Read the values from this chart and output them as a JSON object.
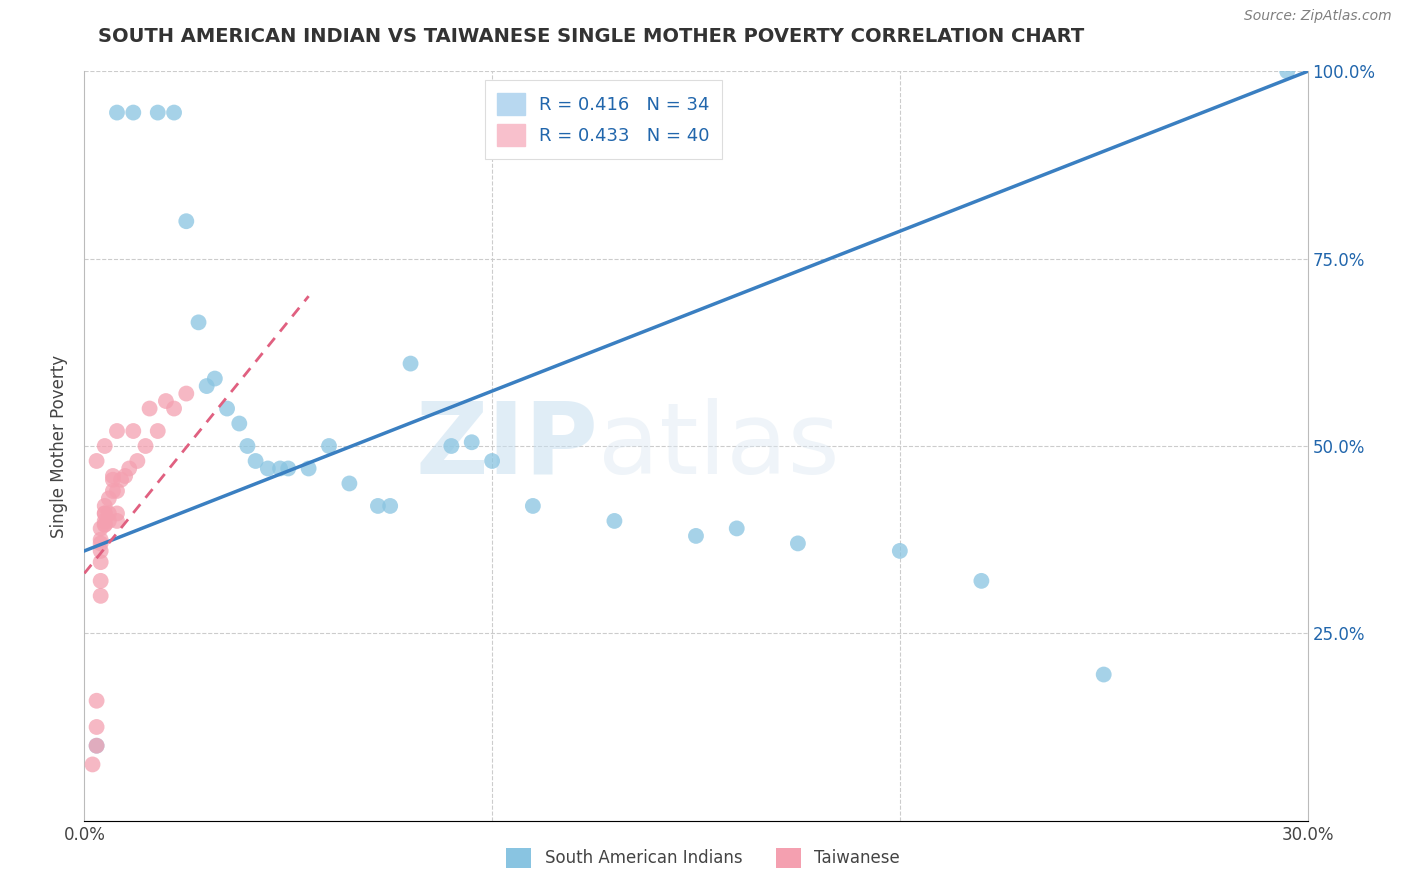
{
  "title": "SOUTH AMERICAN INDIAN VS TAIWANESE SINGLE MOTHER POVERTY CORRELATION CHART",
  "source": "Source: ZipAtlas.com",
  "ylabel": "Single Mother Poverty",
  "xlim": [
    0,
    0.3
  ],
  "ylim": [
    0,
    1.0
  ],
  "x_ticks": [
    0.0,
    0.1,
    0.2,
    0.3
  ],
  "x_tick_labels": [
    "0.0%",
    "",
    "",
    "30.0%"
  ],
  "y_ticks": [
    0.0,
    0.25,
    0.5,
    0.75,
    1.0
  ],
  "y_tick_labels": [
    "",
    "25.0%",
    "50.0%",
    "75.0%",
    "100.0%"
  ],
  "legend_blue_label": "R = 0.416   N = 34",
  "legend_pink_label": "R = 0.433   N = 40",
  "legend1_bottom": "South American Indians",
  "legend2_bottom": "Taiwanese",
  "blue_color": "#89c4e1",
  "pink_color": "#f4a0b0",
  "blue_line_color": "#3a7fc1",
  "pink_line_color": "#e06080",
  "watermark_zip": "ZIP",
  "watermark_atlas": "atlas",
  "blue_scatter_x": [
    0.003,
    0.008,
    0.012,
    0.018,
    0.022,
    0.025,
    0.028,
    0.03,
    0.032,
    0.035,
    0.038,
    0.04,
    0.042,
    0.045,
    0.048,
    0.05,
    0.055,
    0.06,
    0.065,
    0.072,
    0.075,
    0.08,
    0.09,
    0.095,
    0.1,
    0.11,
    0.13,
    0.15,
    0.16,
    0.175,
    0.2,
    0.22,
    0.25,
    0.295
  ],
  "blue_scatter_y": [
    0.1,
    0.945,
    0.945,
    0.945,
    0.945,
    0.8,
    0.665,
    0.58,
    0.59,
    0.55,
    0.53,
    0.5,
    0.48,
    0.47,
    0.47,
    0.47,
    0.47,
    0.5,
    0.45,
    0.42,
    0.42,
    0.61,
    0.5,
    0.505,
    0.48,
    0.42,
    0.4,
    0.38,
    0.39,
    0.37,
    0.36,
    0.32,
    0.195,
    1.0
  ],
  "pink_scatter_x": [
    0.002,
    0.003,
    0.003,
    0.003,
    0.003,
    0.004,
    0.004,
    0.004,
    0.004,
    0.004,
    0.004,
    0.004,
    0.005,
    0.005,
    0.005,
    0.005,
    0.005,
    0.005,
    0.005,
    0.006,
    0.006,
    0.006,
    0.007,
    0.007,
    0.007,
    0.008,
    0.008,
    0.008,
    0.008,
    0.009,
    0.01,
    0.011,
    0.012,
    0.013,
    0.015,
    0.016,
    0.018,
    0.02,
    0.022,
    0.025
  ],
  "pink_scatter_y": [
    0.075,
    0.1,
    0.125,
    0.16,
    0.48,
    0.3,
    0.32,
    0.345,
    0.36,
    0.37,
    0.375,
    0.39,
    0.395,
    0.395,
    0.4,
    0.41,
    0.41,
    0.42,
    0.5,
    0.4,
    0.41,
    0.43,
    0.44,
    0.455,
    0.46,
    0.4,
    0.41,
    0.44,
    0.52,
    0.455,
    0.46,
    0.47,
    0.52,
    0.48,
    0.5,
    0.55,
    0.52,
    0.56,
    0.55,
    0.57
  ],
  "blue_trend_x": [
    0.0,
    0.3
  ],
  "blue_trend_y": [
    0.36,
    1.0
  ],
  "pink_trend_x": [
    0.0,
    0.055
  ],
  "pink_trend_y": [
    0.33,
    0.7
  ],
  "grid_color": "#cccccc",
  "background_color": "#ffffff",
  "title_color": "#333333",
  "title_fontsize": 14,
  "axis_label_color": "#444444",
  "tick_color": "#2166ac"
}
